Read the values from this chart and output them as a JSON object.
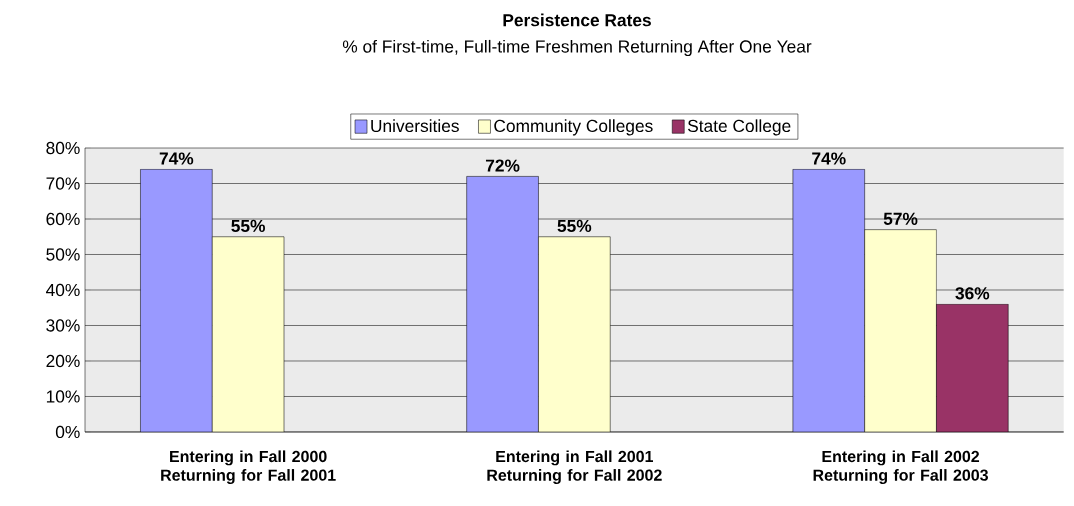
{
  "chart_data": {
    "type": "bar",
    "title": "Persistence Rates",
    "subtitle": "% of First-time, Full-time Freshmen Returning After One Year",
    "categories": [
      "Entering in Fall 2000 Returning for Fall 2001",
      "Entering in Fall 2001 Returning for Fall 2002",
      "Entering in Fall 2002 Returning for Fall 2003"
    ],
    "series": [
      {
        "name": "Universities",
        "color": "#9999ff",
        "values": [
          74,
          72,
          74
        ],
        "value_labels": [
          "74%",
          "72%",
          "74%"
        ]
      },
      {
        "name": "Community Colleges",
        "color": "#ffffcc",
        "values": [
          55,
          55,
          57
        ],
        "value_labels": [
          "55%",
          "55%",
          "57%"
        ]
      },
      {
        "name": "State College",
        "color": "#993366",
        "values": [
          null,
          null,
          36
        ],
        "value_labels": [
          null,
          null,
          "36%"
        ]
      }
    ],
    "ylim": [
      0,
      80
    ],
    "yticks": [
      {
        "value": 0,
        "label": "0%"
      },
      {
        "value": 10,
        "label": "10%"
      },
      {
        "value": 20,
        "label": "20%"
      },
      {
        "value": 30,
        "label": "30%"
      },
      {
        "value": 40,
        "label": "40%"
      },
      {
        "value": 50,
        "label": "50%"
      },
      {
        "value": 60,
        "label": "60%"
      },
      {
        "value": 70,
        "label": "70%"
      },
      {
        "value": 80,
        "label": "80%"
      }
    ],
    "grid": "y",
    "legend": "top"
  }
}
